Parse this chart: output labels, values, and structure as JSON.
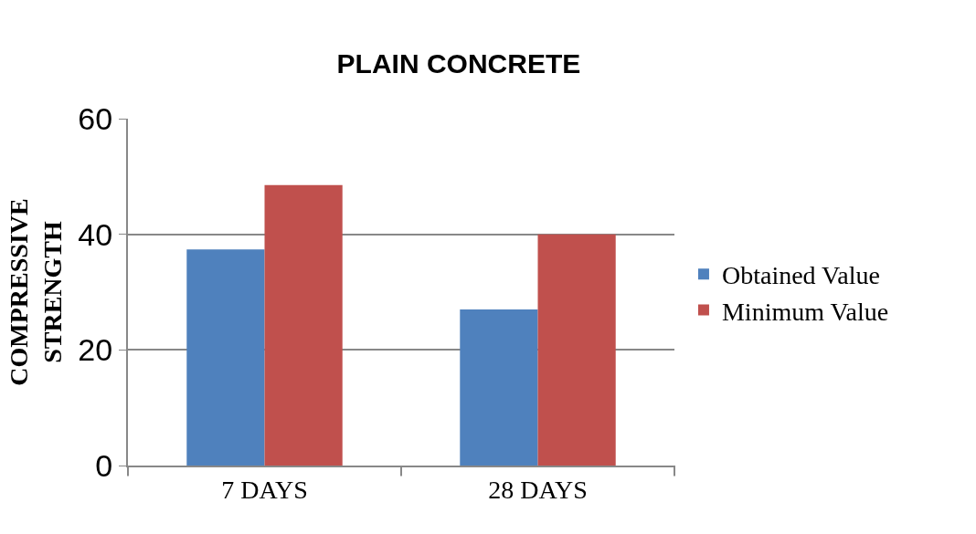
{
  "chart_data": {
    "type": "bar",
    "title": "PLAIN CONCRETE",
    "ylabel": "COMPRESSIVE STRENGTH",
    "categories": [
      "7 DAYS",
      "28 DAYS"
    ],
    "series": [
      {
        "name": "Obtained Value",
        "color": "#4f81bd",
        "values": [
          37.4,
          27.0
        ]
      },
      {
        "name": "Minimum Value",
        "color": "#c0504d",
        "values": [
          48.5,
          40
        ]
      }
    ],
    "ylim": [
      0,
      60
    ],
    "yticks": [
      0,
      20,
      40,
      60
    ],
    "grid": "y",
    "legend": "right"
  }
}
